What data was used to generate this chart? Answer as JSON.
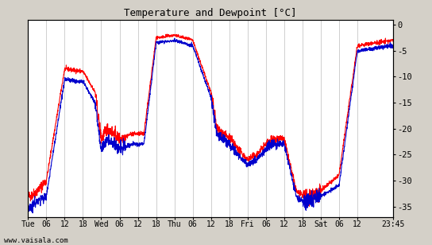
{
  "title": "Temperature and Dewpoint [°C]",
  "yticks": [
    0,
    -5,
    -10,
    -15,
    -20,
    -25,
    -30,
    -35
  ],
  "ylim": [
    -37,
    1
  ],
  "xlim": [
    0,
    119.75
  ],
  "tick_positions": [
    0,
    6,
    12,
    18,
    24,
    30,
    36,
    42,
    48,
    54,
    60,
    66,
    72,
    78,
    84,
    90,
    96,
    102,
    108,
    119.75
  ],
  "x_tick_labels": [
    "Tue",
    "06",
    "12",
    "18",
    "Wed",
    "06",
    "12",
    "18",
    "Thu",
    "06",
    "12",
    "18",
    "Fri",
    "06",
    "12",
    "18",
    "Sat",
    "06",
    "12",
    "23:45"
  ],
  "background_color": "#d4d0c8",
  "plot_bg_color": "#ffffff",
  "grid_color": "#c8c8c8",
  "temp_color": "#ff0000",
  "dewpoint_color": "#0000cc",
  "line_width": 0.8,
  "watermark": "www.vaisala.com",
  "total_hours": 119.75,
  "temp_key_t": [
    0,
    1,
    3,
    6,
    12,
    18,
    22,
    24,
    26,
    28,
    30,
    34,
    38,
    42,
    48,
    54,
    60,
    62,
    66,
    72,
    75,
    78,
    80,
    84,
    88,
    90,
    92,
    96,
    102,
    108,
    119.75
  ],
  "temp_key_v": [
    -33,
    -33,
    -32,
    -30,
    -8.5,
    -9,
    -13,
    -22,
    -20,
    -21,
    -22,
    -21,
    -21,
    -2.5,
    -2,
    -3,
    -13,
    -20,
    -22,
    -26,
    -25,
    -23,
    -22,
    -22,
    -32,
    -33,
    -33,
    -32,
    -29,
    -4,
    -3
  ],
  "dewp_key_t": [
    0,
    1,
    3,
    6,
    12,
    18,
    22,
    24,
    26,
    28,
    30,
    34,
    38,
    42,
    48,
    54,
    60,
    62,
    66,
    72,
    75,
    78,
    80,
    84,
    88,
    90,
    92,
    96,
    102,
    108,
    119.75
  ],
  "dewp_key_v": [
    -35,
    -35,
    -34,
    -33,
    -10.5,
    -11,
    -15,
    -24,
    -22,
    -23,
    -24,
    -23,
    -23,
    -3.5,
    -3,
    -4,
    -14,
    -21,
    -23,
    -27,
    -26,
    -24,
    -23,
    -23,
    -33,
    -34,
    -34,
    -33,
    -31,
    -5,
    -4
  ]
}
